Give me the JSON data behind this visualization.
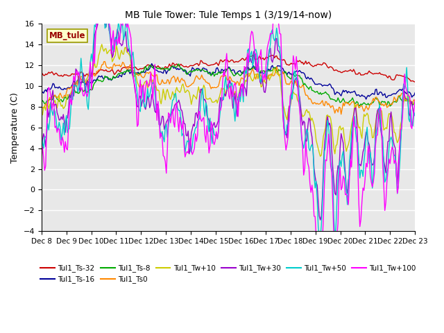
{
  "title": "MB Tule Tower: Tule Temps 1 (3/19/14-now)",
  "ylabel": "Temperature (C)",
  "ylim": [
    -4,
    16
  ],
  "yticks": [
    -4,
    -2,
    0,
    2,
    4,
    6,
    8,
    10,
    12,
    14,
    16
  ],
  "xtick_labels": [
    "Dec 8",
    "Dec 9",
    "Dec 10",
    "Dec 11",
    "Dec 12",
    "Dec 13",
    "Dec 14",
    "Dec 15",
    "Dec 16",
    "Dec 17",
    "Dec 18",
    "Dec 19",
    "Dec 20",
    "Dec 21",
    "Dec 22",
    "Dec 23"
  ],
  "bg_color": "#e8e8e8",
  "grid_color": "#ffffff",
  "series_colors": {
    "Tul1_Ts-32": "#cc0000",
    "Tul1_Ts-16": "#000099",
    "Tul1_Ts-8": "#00aa00",
    "Tul1_Ts0": "#ff8800",
    "Tul1_Tw+10": "#cccc00",
    "Tul1_Tw+30": "#9900cc",
    "Tul1_Tw+50": "#00cccc",
    "Tul1_Tw+100": "#ff00ff"
  },
  "label_box_color": "#ffffcc",
  "label_box_edge": "#999900",
  "label_text": "MB_tule",
  "label_text_color": "#990000",
  "legend_order": [
    "Tul1_Ts-32",
    "Tul1_Ts-16",
    "Tul1_Ts-8",
    "Tul1_Ts0",
    "Tul1_Tw+10",
    "Tul1_Tw+30",
    "Tul1_Tw+50",
    "Tul1_Tw+100"
  ]
}
